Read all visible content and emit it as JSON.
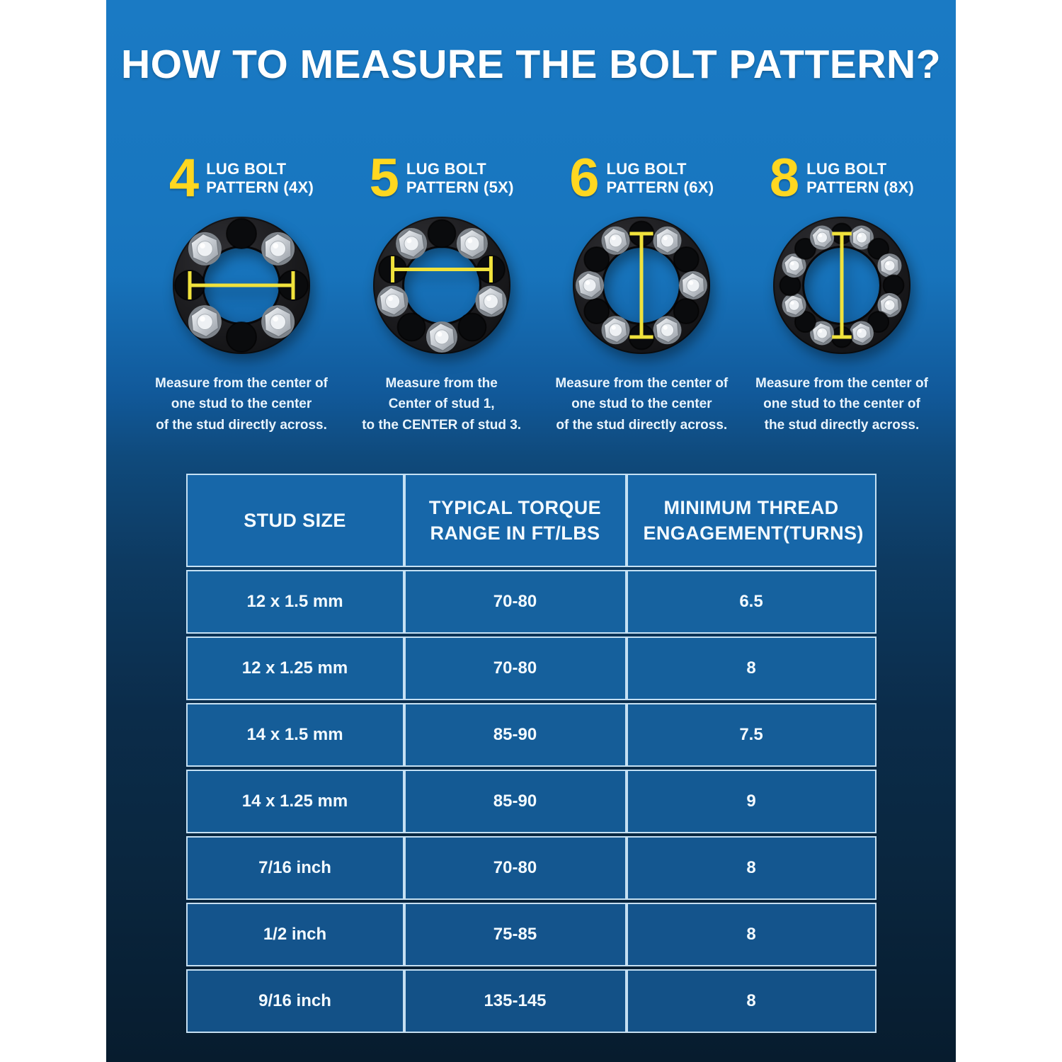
{
  "title": "HOW TO MEASURE THE BOLT PATTERN?",
  "colors": {
    "accent_yellow": "#FFD720",
    "measure_line_yellow": "#F0E23C",
    "panel_top_blue": "#1A7AC4",
    "panel_bottom_navy": "#071C2E",
    "table_border_light": "#D5ECFB",
    "table_header_bg": "#1767A9",
    "table_cell_bg": "#155E9C",
    "text_white": "#FFFFFF"
  },
  "patterns": [
    {
      "number": "4",
      "label_line1": "LUG BOLT",
      "label_line2": "PATTERN (4X)",
      "lugs": 4,
      "measure_line": "horizontal",
      "description": [
        "Measure from the center of",
        "one stud to the center",
        "of the stud directly across."
      ]
    },
    {
      "number": "5",
      "label_line1": "LUG BOLT",
      "label_line2": "PATTERN (5X)",
      "lugs": 5,
      "measure_line": "horizontal",
      "description": [
        "Measure from the",
        "Center of stud 1,",
        "to the CENTER of stud 3."
      ]
    },
    {
      "number": "6",
      "label_line1": "LUG BOLT",
      "label_line2": "PATTERN (6X)",
      "lugs": 6,
      "measure_line": "vertical",
      "description": [
        "Measure from the center of",
        "one stud to the center",
        "of the stud directly across."
      ]
    },
    {
      "number": "8",
      "label_line1": "LUG BOLT",
      "label_line2": "PATTERN (8X)",
      "lugs": 8,
      "measure_line": "vertical",
      "description": [
        "Measure from the center of",
        "one stud to the center of",
        "the stud directly across."
      ]
    }
  ],
  "table": {
    "headers": [
      "STUD SIZE",
      "TYPICAL TORQUE RANGE IN FT/LBS",
      "MINIMUM THREAD ENGAGEMENT(TURNS)"
    ],
    "rows": [
      [
        "12 x 1.5 mm",
        "70-80",
        "6.5"
      ],
      [
        "12 x 1.25 mm",
        "70-80",
        "8"
      ],
      [
        "14 x 1.5 mm",
        "85-90",
        "7.5"
      ],
      [
        "14 x 1.25 mm",
        "85-90",
        "9"
      ],
      [
        "7/16 inch",
        "70-80",
        "8"
      ],
      [
        "1/2 inch",
        "75-85",
        "8"
      ],
      [
        "9/16 inch",
        "135-145",
        "8"
      ]
    ]
  }
}
